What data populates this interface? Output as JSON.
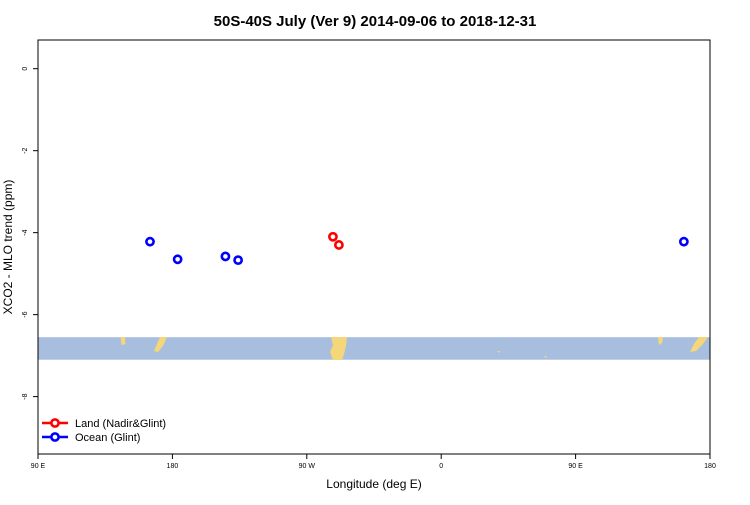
{
  "chart_data": {
    "type": "scatter",
    "title": "50S-40S July (Ver 9)   2014-09-06 to 2018-12-31",
    "xlabel": "Longitude (deg E)",
    "ylabel": "XCO2 - MLO trend (ppm)",
    "xlim": [
      90,
      540
    ],
    "ylim": [
      -9.4,
      0.7
    ],
    "x_ticks": [
      {
        "value": 90,
        "label": "90 E"
      },
      {
        "value": 180,
        "label": "180"
      },
      {
        "value": 270,
        "label": "90 W"
      },
      {
        "value": 360,
        "label": "0"
      },
      {
        "value": 450,
        "label": "90 E"
      },
      {
        "value": 540,
        "label": "180"
      }
    ],
    "y_ticks": [
      {
        "value": 0,
        "label": "0"
      },
      {
        "value": -2,
        "label": "-2"
      },
      {
        "value": -4,
        "label": "-4"
      },
      {
        "value": -6,
        "label": "-6"
      },
      {
        "value": -8,
        "label": "-8"
      }
    ],
    "latitude_band": {
      "y_top": -6.55,
      "y_bottom": -7.1,
      "color": "#a8bedf",
      "land_color": "#f5d77a"
    },
    "series": [
      {
        "name": "Land (Nadir&Glint)",
        "color": "#ff0000",
        "points": [
          {
            "x": 287.5,
            "y": -4.1
          },
          {
            "x": 291.5,
            "y": -4.3
          }
        ]
      },
      {
        "name": "Ocean (Glint)",
        "color": "#0000ff",
        "points": [
          {
            "x": 165,
            "y": -4.22
          },
          {
            "x": 183.5,
            "y": -4.65
          },
          {
            "x": 215.5,
            "y": -4.58
          },
          {
            "x": 224,
            "y": -4.67
          },
          {
            "x": 522.5,
            "y": -4.22
          }
        ]
      }
    ],
    "legend": {
      "position": "bottom-left"
    },
    "grid": false
  }
}
